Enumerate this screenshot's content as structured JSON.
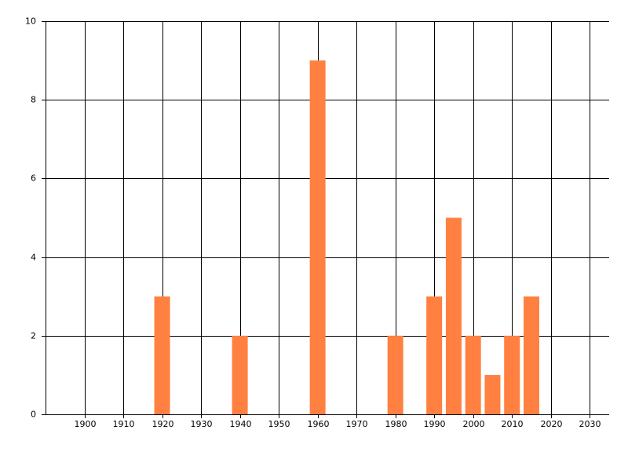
{
  "chart_data": {
    "type": "bar",
    "x": [
      1920,
      1940,
      1960,
      1980,
      1990,
      1995,
      2000,
      2005,
      2010,
      2015
    ],
    "values": [
      3,
      2,
      9,
      2,
      3,
      5,
      2,
      1,
      2,
      3
    ],
    "color": "#ff8040",
    "xlim": [
      1890,
      2035
    ],
    "xticks": [
      1900,
      1910,
      1920,
      1930,
      1940,
      1950,
      1960,
      1970,
      1980,
      1990,
      2000,
      2010,
      2020,
      2030
    ],
    "ylim": [
      0,
      10
    ],
    "yticks": [
      0,
      2,
      4,
      6,
      8,
      10
    ],
    "grid": true
  }
}
